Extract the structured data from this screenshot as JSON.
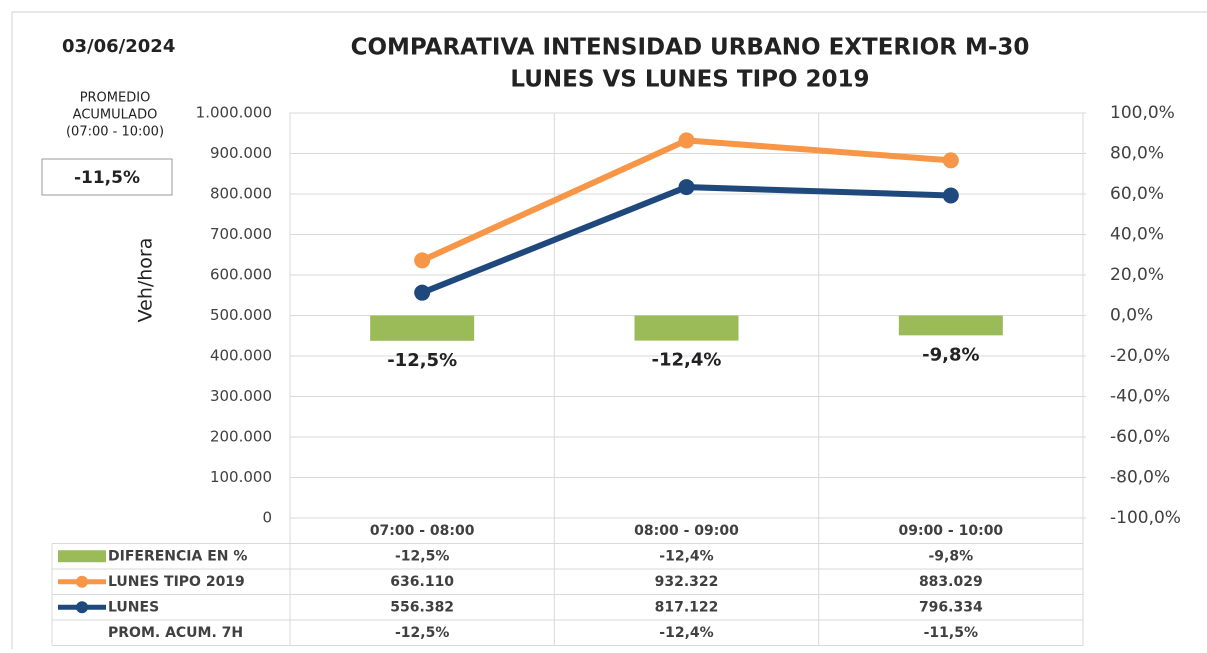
{
  "date": "03/06/2024",
  "side_box": {
    "title_lines": [
      "PROMEDIO",
      "ACUMULADO",
      "(07:00 - 10:00)"
    ],
    "value": "-11,5%"
  },
  "chart_data": {
    "type": "combo",
    "title_lines": [
      "COMPARATIVA INTENSIDAD URBANO EXTERIOR M-30",
      "LUNES VS LUNES TIPO 2019"
    ],
    "ylabel": "Veh/hora",
    "categories": [
      "07:00 - 08:00",
      "08:00 - 09:00",
      "09:00 - 10:00"
    ],
    "ylim": [
      0,
      1000000
    ],
    "yticks": [
      {
        "value": 0,
        "label": "0"
      },
      {
        "value": 100000,
        "label": "100.000"
      },
      {
        "value": 200000,
        "label": "200.000"
      },
      {
        "value": 300000,
        "label": "300.000"
      },
      {
        "value": 400000,
        "label": "400.000"
      },
      {
        "value": 500000,
        "label": "500.000"
      },
      {
        "value": 600000,
        "label": "600.000"
      },
      {
        "value": 700000,
        "label": "700.000"
      },
      {
        "value": 800000,
        "label": "800.000"
      },
      {
        "value": 900000,
        "label": "900.000"
      },
      {
        "value": 1000000,
        "label": "1.000.000"
      }
    ],
    "y2lim": [
      -100,
      100
    ],
    "y2ticks": [
      {
        "value": -100,
        "label": "-100,0%"
      },
      {
        "value": -80,
        "label": "-80,0%"
      },
      {
        "value": -60,
        "label": "-60,0%"
      },
      {
        "value": -40,
        "label": "-40,0%"
      },
      {
        "value": -20,
        "label": "-20,0%"
      },
      {
        "value": 0,
        "label": "0,0%"
      },
      {
        "value": 20,
        "label": "20,0%"
      },
      {
        "value": 40,
        "label": "40,0%"
      },
      {
        "value": 60,
        "label": "60,0%"
      },
      {
        "value": 80,
        "label": "80,0%"
      },
      {
        "value": 100,
        "label": "100,0%"
      }
    ],
    "grid": true,
    "series": [
      {
        "name": "DIFERENCIA EN %",
        "kind": "bar",
        "axis": "y2",
        "color": "#9bbb59",
        "values": [
          -12.5,
          -12.4,
          -9.8
        ],
        "value_labels": [
          "-12,5%",
          "-12,4%",
          "-9,8%"
        ]
      },
      {
        "name": "LUNES TIPO 2019",
        "kind": "line",
        "color": "#f79646",
        "values": [
          636110,
          932322,
          883029
        ],
        "value_labels": [
          "636.110",
          "932.322",
          "883.029"
        ]
      },
      {
        "name": "LUNES",
        "kind": "line",
        "color": "#1f497d",
        "values": [
          556382,
          817122,
          796334
        ],
        "value_labels": [
          "556.382",
          "817.122",
          "796.334"
        ]
      }
    ],
    "table_extra_row": {
      "name": "PROM. ACUM. 7H",
      "labels": [
        "-12,5%",
        "-12,4%",
        "-11,5%"
      ]
    }
  }
}
